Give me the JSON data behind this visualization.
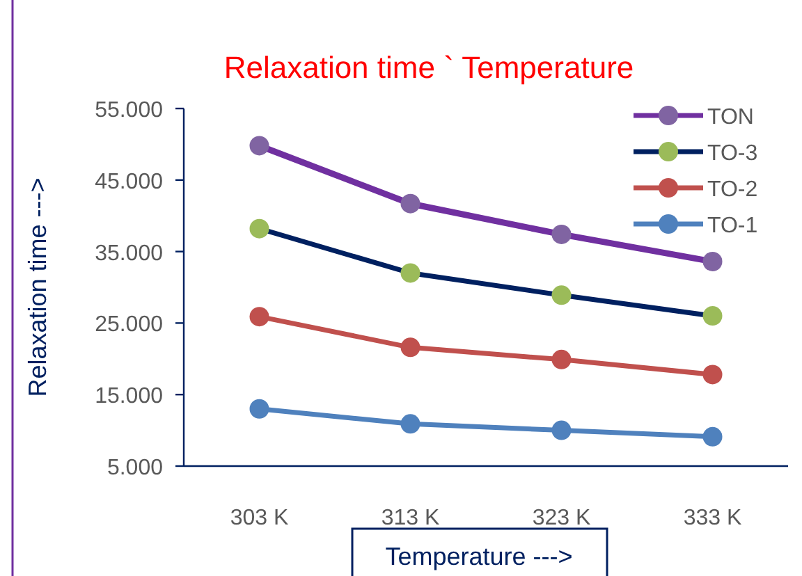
{
  "chart_data": {
    "type": "line",
    "title": "Relaxation time ` Temperature",
    "xlabel": "Temperature --->",
    "ylabel": "Relaxation time --->",
    "categories": [
      "303 K",
      "313 K",
      "323 K",
      "333 K"
    ],
    "series": [
      {
        "name": "TON",
        "color": "#7030a0",
        "colors": [
          "#8064a2",
          "#8064a2",
          "#8064a2",
          "#8064a2"
        ],
        "values": [
          49.8,
          41.7,
          37.4,
          33.6
        ]
      },
      {
        "name": "TO-3",
        "color": "#002060",
        "colors": [
          "#9bbb59",
          "#9bbb59",
          "#9bbb59",
          "#9bbb59"
        ],
        "values": [
          38.2,
          32.0,
          28.9,
          26.0
        ]
      },
      {
        "name": "TO-2",
        "color": "#c0504d",
        "values": [
          25.9,
          21.6,
          19.9,
          17.8
        ]
      },
      {
        "name": "TO-1",
        "color": "#4f81bd",
        "values": [
          13.0,
          10.9,
          10.0,
          9.1
        ]
      }
    ],
    "ylim": [
      5,
      55
    ],
    "yticks": [
      {
        "value": 5,
        "label": "5.000"
      },
      {
        "value": 15,
        "label": "15.000"
      },
      {
        "value": 25,
        "label": "25.000"
      },
      {
        "value": 35,
        "label": "35.000"
      },
      {
        "value": 45,
        "label": "45.000"
      },
      {
        "value": 55,
        "label": "55.000"
      }
    ],
    "grid": false,
    "legend": "top right",
    "marker": "circle",
    "line_style": "solid"
  }
}
